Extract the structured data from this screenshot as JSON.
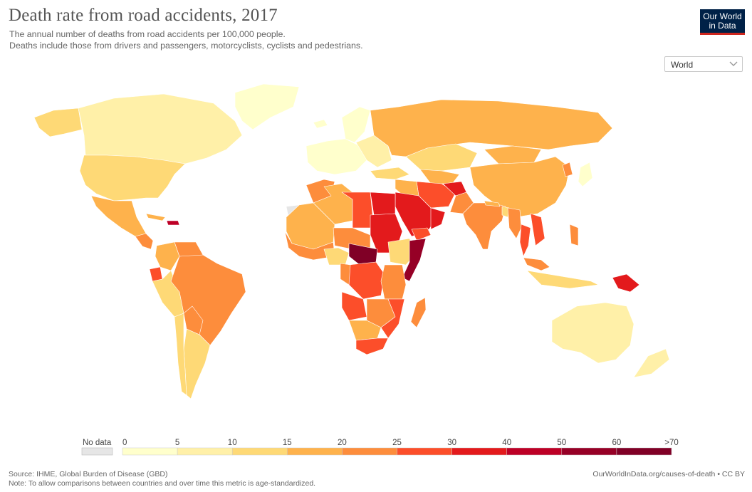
{
  "title": "Death rate from road accidents, 2017",
  "subtitle_line1": "The annual number of deaths from road accidents per 100,000 people.",
  "subtitle_line2": "Deaths include those from drivers and passengers, motorcyclists, cyclists and pedestrians.",
  "logo": {
    "line1": "Our World",
    "line2": "in Data"
  },
  "region_select": {
    "value": "World",
    "icon": "chevron-down-icon"
  },
  "legend": {
    "no_data_label": "No data",
    "no_data_color": "#e6e6e6",
    "bins": [
      {
        "from": "0",
        "color": "#ffffcc"
      },
      {
        "from": "5",
        "color": "#fff0a8"
      },
      {
        "from": "10",
        "color": "#fed976"
      },
      {
        "from": "15",
        "color": "#feb24c"
      },
      {
        "from": "20",
        "color": "#fd8d3c"
      },
      {
        "from": "25",
        "color": "#fc4e2a"
      },
      {
        "from": "30",
        "color": "#e31a1c"
      },
      {
        "from": "40",
        "color": "#bd0026"
      },
      {
        "from": "50",
        "color": "#960026"
      },
      {
        "from": "60",
        "color": "#800026"
      }
    ],
    "last_label": ">70"
  },
  "source_line": "Source: IHME, Global Burden of Disease (GBD)",
  "note_line": "Note: To allow comparisons between countries and over time this metric is age-standardized.",
  "credit": "OurWorldInData.org/causes-of-death • CC BY"
}
